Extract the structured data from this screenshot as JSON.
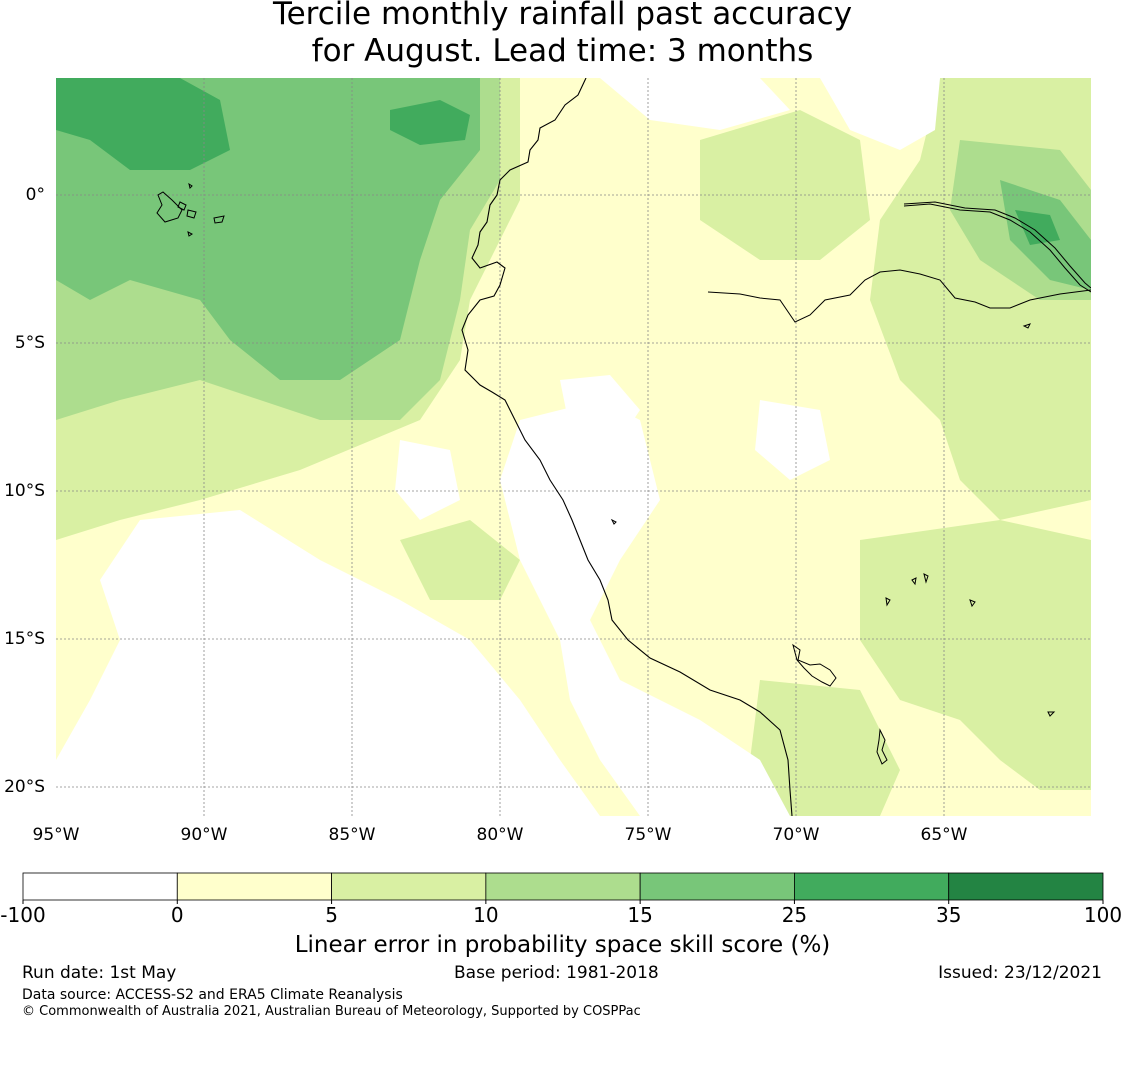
{
  "title": {
    "line1": "Tercile monthly rainfall past accuracy",
    "line2": "for August. Lead time: 3 months"
  },
  "map": {
    "region_lon": [
      -95,
      -60
    ],
    "region_lat": [
      -21,
      4
    ],
    "lon_ticks": [
      {
        "value": -95,
        "label": "95°W"
      },
      {
        "value": -90,
        "label": "90°W"
      },
      {
        "value": -85,
        "label": "85°W"
      },
      {
        "value": -80,
        "label": "80°W"
      },
      {
        "value": -75,
        "label": "75°W"
      },
      {
        "value": -70,
        "label": "70°W"
      },
      {
        "value": -65,
        "label": "65°W"
      }
    ],
    "lat_ticks": [
      {
        "value": 0,
        "label": "0°"
      },
      {
        "value": -5,
        "label": "5°S"
      },
      {
        "value": -10,
        "label": "10°S"
      },
      {
        "value": -15,
        "label": "15°S"
      },
      {
        "value": -20,
        "label": "20°S"
      }
    ],
    "gridlines": true,
    "features": [
      "coastline",
      "Galapagos Islands",
      "Amazon/Marañón river",
      "Lake Titicaca"
    ]
  },
  "colorbar": {
    "boundaries": [
      "-100",
      "0",
      "5",
      "10",
      "15",
      "25",
      "35",
      "100"
    ],
    "colors": [
      "#ffffff",
      "#ffffcc",
      "#d9f0a3",
      "#addd8e",
      "#78c679",
      "#41ab5d",
      "#238443"
    ],
    "label": "Linear error in probability space skill score (%)"
  },
  "footer": {
    "run_date": "Run date: 1st May",
    "base_period": "Base period: 1981-2018",
    "issued": "Issued: 23/12/2021",
    "data_source": "Data source: ACCESS-S2 and ERA5 Climate Reanalysis",
    "copyright": "© Commonwealth of Australia 2021, Australian Bureau of Meteorology, Supported by COSPPac"
  }
}
